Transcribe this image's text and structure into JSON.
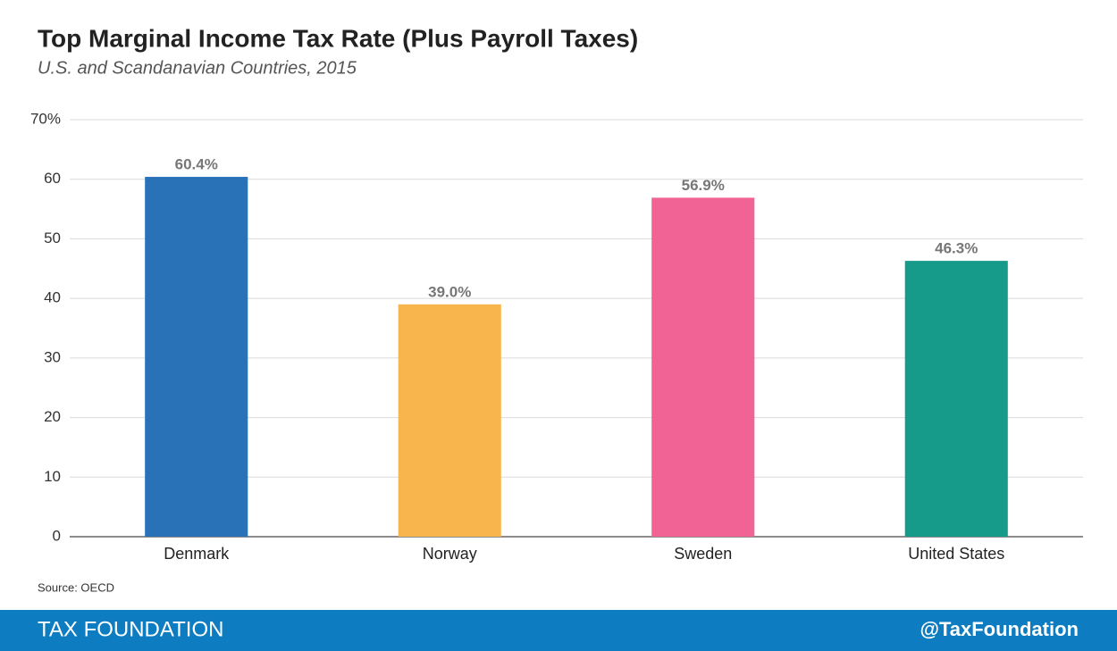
{
  "chart_data": {
    "type": "bar",
    "title": "Top Marginal Income Tax Rate (Plus Payroll Taxes)",
    "subtitle": "U.S. and Scandanavian Countries, 2015",
    "categories": [
      "Denmark",
      "Norway",
      "Sweden",
      "United States"
    ],
    "values": [
      60.4,
      39.0,
      56.9,
      46.3
    ],
    "value_labels": [
      "60.4%",
      "39.0%",
      "56.9%",
      "46.3%"
    ],
    "colors": [
      "#2a72b8",
      "#f9b54d",
      "#f06394",
      "#169a8a"
    ],
    "ylim": [
      0,
      70
    ],
    "yticks": [
      0,
      10,
      20,
      30,
      40,
      50,
      60,
      {
        "value": 70,
        "label": "70%"
      }
    ],
    "grid": true,
    "source": "Source: OECD",
    "footer_left": "TAX FOUNDATION",
    "footer_right": "@TaxFoundation"
  }
}
